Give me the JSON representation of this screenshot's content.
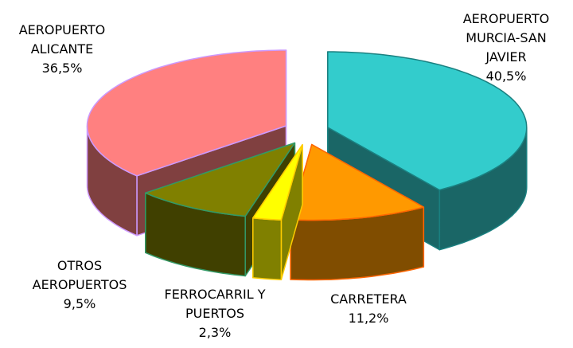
{
  "chart_data": {
    "type": "pie3d",
    "categories": [
      "AEROPUERTO\nMURCIA-SAN\nJAVIER",
      "CARRETERA",
      "FERROCARRIL Y\nPUERTOS",
      "OTROS\nAEROPUERTOS",
      "AEROPUERTO\nALICANTE"
    ],
    "values": [
      40.5,
      11.2,
      2.3,
      9.5,
      36.5
    ],
    "value_labels": [
      "40,5%",
      "11,2%",
      "2,3%",
      "9,5%",
      "36,5%"
    ],
    "colors": [
      "#33cccc",
      "#ff9900",
      "#ffff00",
      "#808000",
      "#ff8080"
    ],
    "edge_colors": [
      "#1a8080",
      "#ff6600",
      "#ffcc00",
      "#339966",
      "#cc99ff"
    ]
  }
}
